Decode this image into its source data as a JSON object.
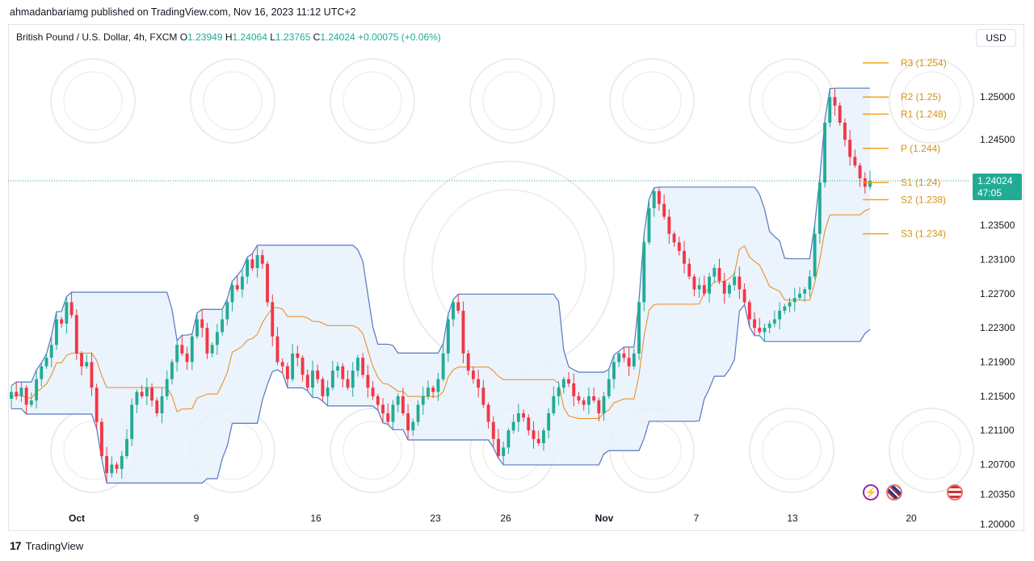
{
  "header": {
    "published_text": "ahmadanbariamg published on TradingView.com, Nov 16, 2023 11:12 UTC+2"
  },
  "symbol": {
    "name": "British Pound / U.S. Dollar, 4h, FXCM",
    "o_label": "O",
    "o_value": "1.23949",
    "h_label": "H",
    "h_value": "1.24064",
    "l_label": "L",
    "l_value": "1.23765",
    "c_label": "C",
    "c_value": "1.24024",
    "change": "+0.00075 (+0.06%)"
  },
  "currency_button": "USD",
  "last_price": {
    "price": "1.24024",
    "countdown": "47:05"
  },
  "footer": {
    "brand": "TradingView",
    "logo": "17"
  },
  "colors": {
    "up": "#22ab94",
    "down": "#f23645",
    "channel": "#5677c3",
    "channel_fill": "#e8f1fb",
    "midline": "#e88a1a",
    "pivot": "#f0a31d",
    "price_line": "#22ab94"
  },
  "icons": [
    "lightning-icon",
    "uk-flag-icon",
    "us-flag-icon"
  ],
  "chart_data": {
    "type": "candlestick",
    "instrument": "British Pound / U.S. Dollar",
    "timeframe": "4h",
    "x_ticks": [
      "Oct",
      "9",
      "16",
      "23",
      "26",
      "Nov",
      "7",
      "13",
      "20"
    ],
    "y_ticks": [
      "1.25000",
      "1.24500",
      "1.24024",
      "1.23500",
      "1.23100",
      "1.22700",
      "1.22300",
      "1.21900",
      "1.21500",
      "1.21100",
      "1.20700",
      "1.20350",
      "1.20000"
    ],
    "ylim": [
      1.1995,
      1.2555
    ],
    "pivots": [
      {
        "label": "R3 (1.254)",
        "value": 1.254
      },
      {
        "label": "R2 (1.25)",
        "value": 1.25
      },
      {
        "label": "R1 (1.248)",
        "value": 1.248
      },
      {
        "label": "P (1.244)",
        "value": 1.244
      },
      {
        "label": "S1 (1.24)",
        "value": 1.24
      },
      {
        "label": "S2 (1.238)",
        "value": 1.238
      },
      {
        "label": "S3 (1.234)",
        "value": 1.234
      }
    ],
    "closes": [
      1.2155,
      1.215,
      1.216,
      1.214,
      1.2145,
      1.217,
      1.2185,
      1.2195,
      1.221,
      1.224,
      1.2235,
      1.226,
      1.2245,
      1.22,
      1.2185,
      1.219,
      1.216,
      1.212,
      1.208,
      1.206,
      1.207,
      1.2065,
      1.208,
      1.21,
      1.214,
      1.2155,
      1.215,
      1.216,
      1.2145,
      1.213,
      1.215,
      1.217,
      1.219,
      1.221,
      1.22,
      1.219,
      1.222,
      1.224,
      1.223,
      1.22,
      1.221,
      1.2225,
      1.224,
      1.226,
      1.228,
      1.2275,
      1.229,
      1.231,
      1.23,
      1.2315,
      1.2305,
      1.226,
      1.222,
      1.219,
      1.2185,
      1.217,
      1.22,
      1.2195,
      1.2175,
      1.216,
      1.218,
      1.217,
      1.215,
      1.216,
      1.218,
      1.2185,
      1.217,
      1.216,
      1.218,
      1.2195,
      1.2175,
      1.216,
      1.215,
      1.214,
      1.213,
      1.212,
      1.214,
      1.215,
      1.213,
      1.211,
      1.212,
      1.214,
      1.215,
      1.216,
      1.2155,
      1.217,
      1.22,
      1.224,
      1.226,
      1.225,
      1.22,
      1.218,
      1.217,
      1.216,
      1.214,
      1.212,
      1.21,
      1.208,
      1.209,
      1.211,
      1.212,
      1.213,
      1.2125,
      1.211,
      1.21,
      1.2095,
      1.211,
      1.213,
      1.215,
      1.216,
      1.217,
      1.2165,
      1.215,
      1.2145,
      1.214,
      1.215,
      1.2145,
      1.213,
      1.215,
      1.217,
      1.219,
      1.22,
      1.2195,
      1.2185,
      1.22,
      1.226,
      1.233,
      1.237,
      1.239,
      1.2375,
      1.236,
      1.234,
      1.233,
      1.232,
      1.2305,
      1.229,
      1.2275,
      1.228,
      1.227,
      1.229,
      1.23,
      1.2285,
      1.227,
      1.228,
      1.229,
      1.2275,
      1.226,
      1.224,
      1.223,
      1.2225,
      1.223,
      1.2235,
      1.224,
      1.225,
      1.2255,
      1.226,
      1.2265,
      1.227,
      1.2275,
      1.229,
      1.234,
      1.24,
      1.247,
      1.25,
      1.249,
      1.247,
      1.245,
      1.243,
      1.242,
      1.2405,
      1.2395,
      1.2402
    ]
  }
}
